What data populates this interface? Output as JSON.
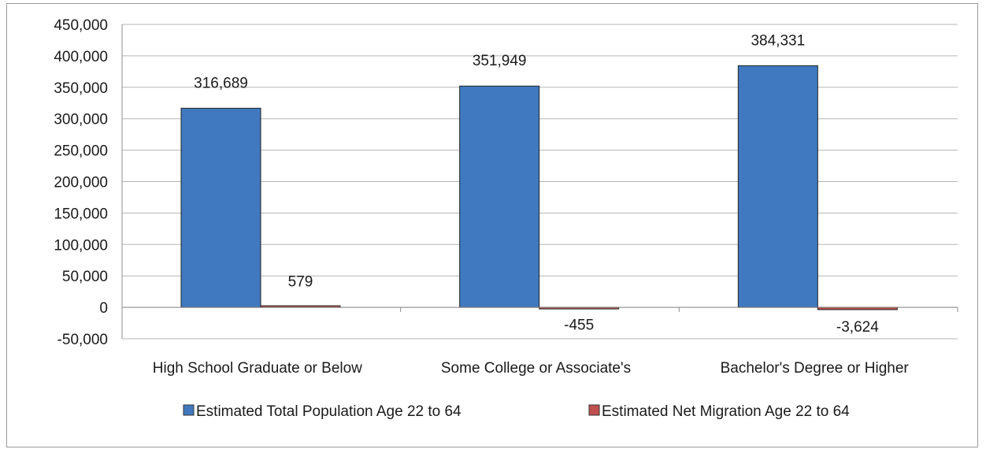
{
  "chart_data": {
    "type": "bar",
    "title": "",
    "xlabel": "",
    "ylabel": "",
    "categories": [
      "High School Graduate or Below",
      "Some College or Associate's",
      "Bachelor's Degree or Higher"
    ],
    "series": [
      {
        "name": "Estimated Total Population Age 22 to 64",
        "color": "#4079BF",
        "values": [
          316689,
          351949,
          384331
        ],
        "labels": [
          "316,689",
          "351,949",
          "384,331"
        ]
      },
      {
        "name": "Estimated Net Migration Age 22 to 64",
        "color": "#C0504D",
        "values": [
          579,
          -455,
          -3624
        ],
        "labels": [
          "579",
          "-455",
          "-3,624"
        ]
      }
    ],
    "ylim": [
      -50000,
      450000
    ],
    "yticks": [
      -50000,
      0,
      50000,
      100000,
      150000,
      200000,
      250000,
      300000,
      350000,
      400000,
      450000
    ],
    "ytick_labels": [
      "-50,000",
      "0",
      "50,000",
      "100,000",
      "150,000",
      "200,000",
      "250,000",
      "300,000",
      "350,000",
      "400,000",
      "450,000"
    ],
    "grid": true,
    "legend_position": "bottom"
  }
}
